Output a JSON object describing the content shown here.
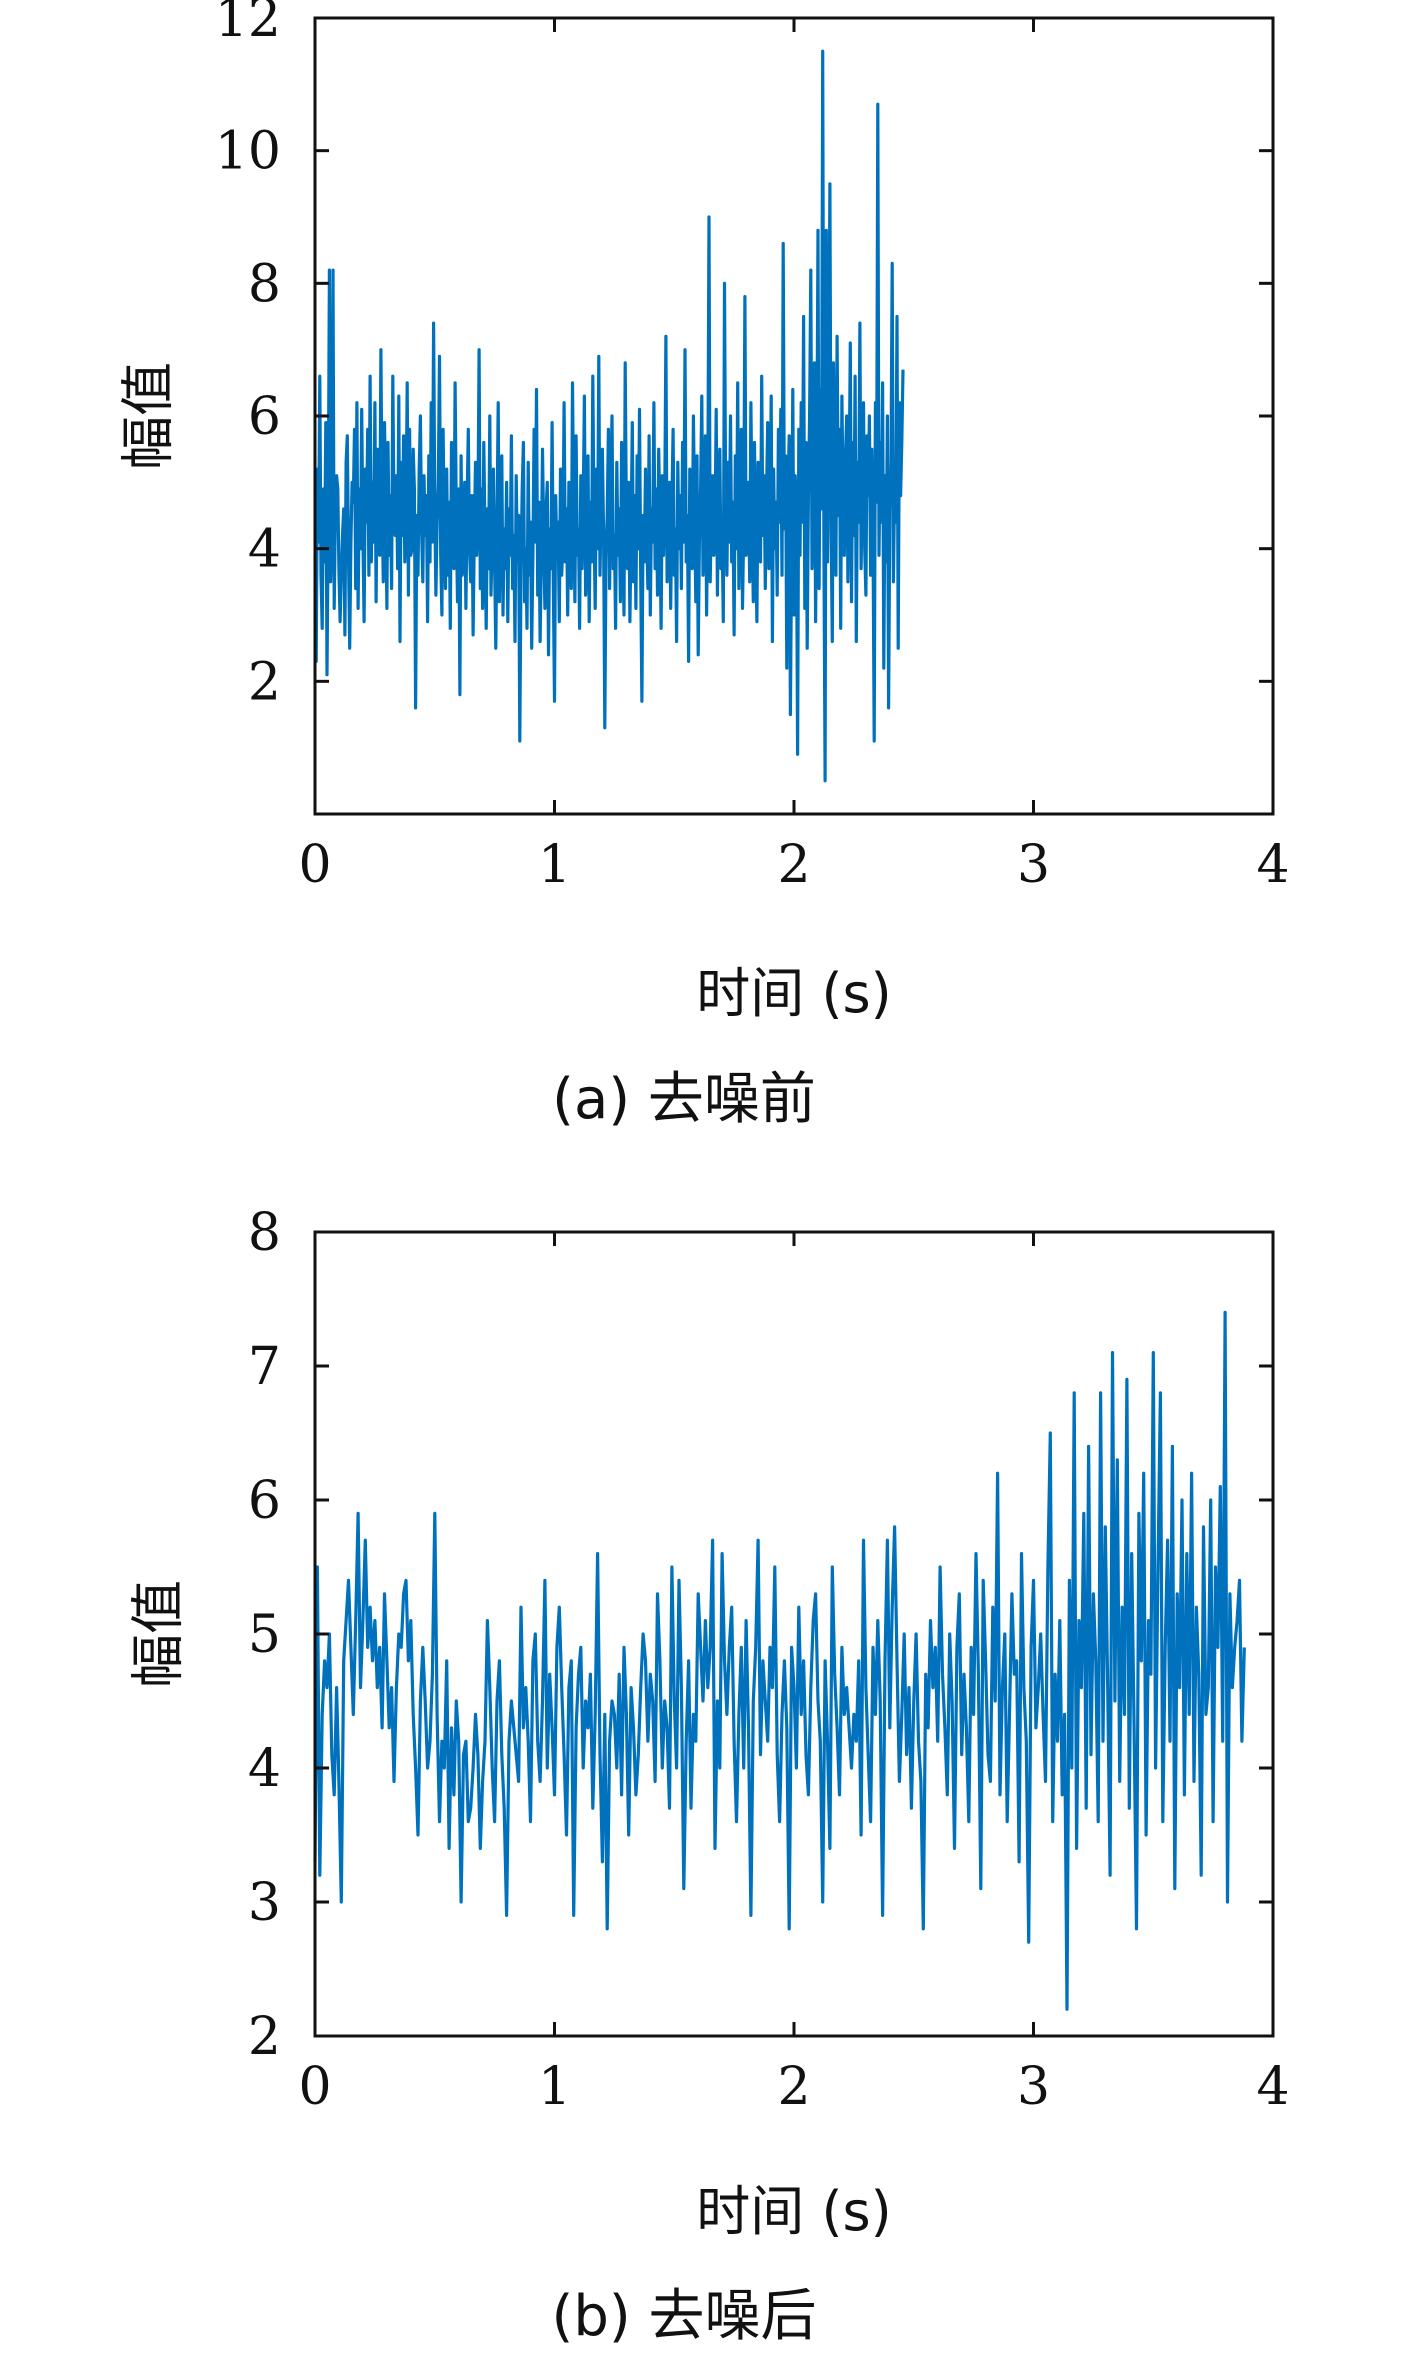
{
  "chart_data": [
    {
      "panel": "a",
      "type": "line",
      "caption": "(a) 去噪前",
      "xlabel": "时间 (s)",
      "ylabel": "幅值",
      "xlim": [
        0,
        4
      ],
      "ylim": [
        0,
        12
      ],
      "xticks": [
        "0",
        "1",
        "2",
        "3",
        "4"
      ],
      "yticks": [
        "2",
        "4",
        "6",
        "8",
        "10",
        "12"
      ],
      "x_tick_values": [
        0,
        1,
        2,
        3,
        4
      ],
      "y_tick_values": [
        2,
        4,
        6,
        8,
        10,
        12
      ],
      "grid": false,
      "series": [
        {
          "color": "#0072BD",
          "x_start": 0,
          "x_step": 0.005,
          "values": [
            3.9,
            2.3,
            5.2,
            4.1,
            6.6,
            3.6,
            2.8,
            4.9,
            3.8,
            5.9,
            2.1,
            4.4,
            8.2,
            3.5,
            4.2,
            8.2,
            3.1,
            4.6,
            5.1,
            4.9,
            3.7,
            2.9,
            3.6,
            4.2,
            4.6,
            2.7,
            5.3,
            5.7,
            3.9,
            2.5,
            4.1,
            5.0,
            4.7,
            5.8,
            3.4,
            6.2,
            3.1,
            4.9,
            4.0,
            6.1,
            4.2,
            2.9,
            5.2,
            4.4,
            5.8,
            3.6,
            6.6,
            3.8,
            5.0,
            4.1,
            6.2,
            3.2,
            5.5,
            4.3,
            3.9,
            7.0,
            4.6,
            3.5,
            5.9,
            4.8,
            3.1,
            5.6,
            3.9,
            4.8,
            3.4,
            6.6,
            4.5,
            4.2,
            5.1,
            3.7,
            6.3,
            2.6,
            5.3,
            4.2,
            5.7,
            3.8,
            4.4,
            6.5,
            3.3,
            5.8,
            3.9,
            4.0,
            5.5,
            4.9,
            1.6,
            4.5,
            3.6,
            5.2,
            6.0,
            4.3,
            3.5,
            5.1,
            4.2,
            4.8,
            2.9,
            5.4,
            3.8,
            6.2,
            4.1,
            7.4,
            4.6,
            3.3,
            4.4,
            5.0,
            6.9,
            3.9,
            3.0,
            5.8,
            4.3,
            3.4,
            5.2,
            3.6,
            4.7,
            2.8,
            5.6,
            4.1,
            3.7,
            6.5,
            4.5,
            3.2,
            4.9,
            1.8,
            5.4,
            3.6,
            4.3,
            5.0,
            3.1,
            4.7,
            5.8,
            4.0,
            3.5,
            4.8,
            2.7,
            4.2,
            5.3,
            3.9,
            4.5,
            7.0,
            3.4,
            4.9,
            3.1,
            5.6,
            4.2,
            2.8,
            4.6,
            3.7,
            6.0,
            3.3,
            4.1,
            5.2,
            3.8,
            2.5,
            4.4,
            6.2,
            3.2,
            4.8,
            5.4,
            3.0,
            4.3,
            3.7,
            5.0,
            2.9,
            4.6,
            3.9,
            5.7,
            3.4,
            4.2,
            2.6,
            5.1,
            3.8,
            4.5,
            1.1,
            3.7,
            4.9,
            5.6,
            3.2,
            4.0,
            2.8,
            5.3,
            3.6,
            4.4,
            2.5,
            3.9,
            5.8,
            4.1,
            6.4,
            3.3,
            4.7,
            2.6,
            3.8,
            5.5,
            4.2,
            3.1,
            4.6,
            5.0,
            2.4,
            4.3,
            3.7,
            5.9,
            3.5,
            1.7,
            4.8,
            3.9,
            4.4,
            2.9,
            5.2,
            3.6,
            4.1,
            6.2,
            3.8,
            4.6,
            3.0,
            5.0,
            4.2,
            3.4,
            6.5,
            4.5,
            3.2,
            5.7,
            3.9,
            4.3,
            2.8,
            5.1,
            3.7,
            4.6,
            6.3,
            3.3,
            4.0,
            5.4,
            2.9,
            4.7,
            3.8,
            6.6,
            4.4,
            3.1,
            5.2,
            4.0,
            6.9,
            3.6,
            4.8,
            5.5,
            4.2,
            1.3,
            3.9,
            4.5,
            5.8,
            3.4,
            4.9,
            6.0,
            3.7,
            4.2,
            2.8,
            5.3,
            3.9,
            4.6,
            3.2,
            5.6,
            4.1,
            3.0,
            6.8,
            4.4,
            3.7,
            5.0,
            2.9,
            4.3,
            5.9,
            3.5,
            4.8,
            3.1,
            5.4,
            4.0,
            6.1,
            3.6,
            1.7,
            4.5,
            3.8,
            5.2,
            4.2,
            3.4,
            5.7,
            3.0,
            4.6,
            4.1,
            6.2,
            3.7,
            4.9,
            3.3,
            5.5,
            4.4,
            2.8,
            5.1,
            3.9,
            4.6,
            7.2,
            3.5,
            4.2,
            5.0,
            3.1,
            4.7,
            5.8,
            3.6,
            4.3,
            2.6,
            5.3,
            4.0,
            4.8,
            3.4,
            5.6,
            4.1,
            7.0,
            3.8,
            4.5,
            2.3,
            5.2,
            4.3,
            3.7,
            6.0,
            4.6,
            3.2,
            5.4,
            2.4,
            4.1,
            4.9,
            6.3,
            3.6,
            4.4,
            5.7,
            3.0,
            4.8,
            9.0,
            3.5,
            4.6,
            5.1,
            3.9,
            4.3,
            6.1,
            3.3,
            4.8,
            5.5,
            3.7,
            4.2,
            2.9,
            8.0,
            4.5,
            3.6,
            5.3,
            4.1,
            6.0,
            3.8,
            4.7,
            2.7,
            5.4,
            4.0,
            6.5,
            3.4,
            4.9,
            5.8,
            3.1,
            4.3,
            7.8,
            3.9,
            4.6,
            5.0,
            3.5,
            6.2,
            4.4,
            3.2,
            5.6,
            4.0,
            2.9,
            5.3,
            4.7,
            3.8,
            6.6,
            4.2,
            5.1,
            3.4,
            4.8,
            5.9,
            3.7,
            4.5,
            6.3,
            2.6,
            5.2,
            4.0,
            4.7,
            3.3,
            5.8,
            4.4,
            6.1,
            3.6,
            8.6,
            4.3,
            5.4,
            2.2,
            4.9,
            5.7,
            1.5,
            4.0,
            6.4,
            3.0,
            5.1,
            4.6,
            0.9,
            5.8,
            3.9,
            6.2,
            4.4,
            7.5,
            3.1,
            5.6,
            2.5,
            4.8,
            6.0,
            8.2,
            3.7,
            4.5,
            6.8,
            2.9,
            5.2,
            8.8,
            3.4,
            6.4,
            4.6,
            11.5,
            4.1,
            0.5,
            8.8,
            3.8,
            6.1,
            9.5,
            4.3,
            2.6,
            6.8,
            5.1,
            3.6,
            7.2,
            4.5,
            5.8,
            2.8,
            6.3,
            4.7,
            3.9,
            5.4,
            6.0,
            3.5,
            4.9,
            7.1,
            3.2,
            5.6,
            4.2,
            6.6,
            2.6,
            5.3,
            4.4,
            7.4,
            3.7,
            5.0,
            6.2,
            4.0,
            3.3,
            5.7,
            4.8,
            6.0,
            3.6,
            5.5,
            4.3,
            1.1,
            6.2,
            4.7,
            10.7,
            3.9,
            5.6,
            4.4,
            6.5,
            2.2,
            5.1,
            3.8,
            6.0,
            1.6,
            4.6,
            5.3,
            8.3,
            3.5,
            5.0,
            4.4,
            7.5,
            2.5,
            6.2,
            4.8,
            5.6,
            6.7
          ]
        }
      ]
    },
    {
      "panel": "b",
      "type": "line",
      "caption": "(b) 去噪后",
      "xlabel": "时间 (s)",
      "ylabel": "幅值",
      "xlim": [
        0,
        4
      ],
      "ylim": [
        2,
        8
      ],
      "xticks": [
        "0",
        "1",
        "2",
        "3",
        "4"
      ],
      "yticks": [
        "2",
        "3",
        "4",
        "5",
        "6",
        "7",
        "8"
      ],
      "x_tick_values": [
        0,
        1,
        2,
        3,
        4
      ],
      "y_tick_values": [
        2,
        3,
        4,
        5,
        6,
        7,
        8
      ],
      "grid": false,
      "series": [
        {
          "color": "#0072BD",
          "x_start": 0,
          "x_step": 0.01,
          "values": [
            3.3,
            5.5,
            3.2,
            4.4,
            4.8,
            4.6,
            5.0,
            4.1,
            3.8,
            4.6,
            3.9,
            3.0,
            4.8,
            5.1,
            5.4,
            4.9,
            4.4,
            5.1,
            5.9,
            4.6,
            5.1,
            5.7,
            4.9,
            5.2,
            4.8,
            5.1,
            4.6,
            4.9,
            4.3,
            5.3,
            4.8,
            4.3,
            4.6,
            3.9,
            4.6,
            5.0,
            4.9,
            5.3,
            5.4,
            4.8,
            5.1,
            4.4,
            4.0,
            3.5,
            4.5,
            4.9,
            4.5,
            4.0,
            4.2,
            4.7,
            5.9,
            4.4,
            3.6,
            4.2,
            4.0,
            4.8,
            3.4,
            4.3,
            3.8,
            4.5,
            4.2,
            3.0,
            4.1,
            4.2,
            3.6,
            3.7,
            4.0,
            4.4,
            4.1,
            3.4,
            3.9,
            4.2,
            5.1,
            4.6,
            4.0,
            3.6,
            4.5,
            4.8,
            4.1,
            3.7,
            2.9,
            4.2,
            4.5,
            4.3,
            4.1,
            3.9,
            5.2,
            4.3,
            4.6,
            4.2,
            3.6,
            4.8,
            5.0,
            4.2,
            3.9,
            4.5,
            5.4,
            4.0,
            4.7,
            4.3,
            3.8,
            4.9,
            5.2,
            4.6,
            4.1,
            3.5,
            4.6,
            4.8,
            2.9,
            4.3,
            4.7,
            4.9,
            4.0,
            4.5,
            4.3,
            4.7,
            3.7,
            4.4,
            5.6,
            4.1,
            3.3,
            4.4,
            2.8,
            4.2,
            4.5,
            4.4,
            4.0,
            4.7,
            3.8,
            4.9,
            4.4,
            3.5,
            4.6,
            4.3,
            3.8,
            4.1,
            4.6,
            5.0,
            4.8,
            4.2,
            4.7,
            4.5,
            3.9,
            5.3,
            4.8,
            4.0,
            4.5,
            4.3,
            3.7,
            5.5,
            4.5,
            4.0,
            5.4,
            4.6,
            3.1,
            4.2,
            4.8,
            3.7,
            4.4,
            4.2,
            5.3,
            4.9,
            4.5,
            5.1,
            4.6,
            4.9,
            5.7,
            3.4,
            4.5,
            4.0,
            5.6,
            4.8,
            4.4,
            4.9,
            5.2,
            4.2,
            3.6,
            4.4,
            4.9,
            4.0,
            5.1,
            4.3,
            2.9,
            4.5,
            4.9,
            5.7,
            4.1,
            4.8,
            4.5,
            4.2,
            4.9,
            4.6,
            5.5,
            4.1,
            3.6,
            4.4,
            4.8,
            4.3,
            2.8,
            4.9,
            4.6,
            4.0,
            5.2,
            4.4,
            4.8,
            4.1,
            3.8,
            4.6,
            5.1,
            5.3,
            4.5,
            4.2,
            3.0,
            4.8,
            4.2,
            3.4,
            5.5,
            4.7,
            4.3,
            3.8,
            4.9,
            4.4,
            4.6,
            4.3,
            4.0,
            4.4,
            4.2,
            4.8,
            3.5,
            5.7,
            4.6,
            4.1,
            3.6,
            4.9,
            4.4,
            5.1,
            4.5,
            2.9,
            4.8,
            5.7,
            4.3,
            5.2,
            5.8,
            4.8,
            3.9,
            4.4,
            5.0,
            4.1,
            4.6,
            3.7,
            4.5,
            5.0,
            4.2,
            3.9,
            2.8,
            4.7,
            4.3,
            5.1,
            4.6,
            4.9,
            4.2,
            5.5,
            4.7,
            4.3,
            3.8,
            5.0,
            4.5,
            3.4,
            4.9,
            5.3,
            4.1,
            4.7,
            4.3,
            3.6,
            4.9,
            4.4,
            5.6,
            4.7,
            3.1,
            5.4,
            4.8,
            4.1,
            3.9,
            5.2,
            4.5,
            6.2,
            3.8,
            4.6,
            5.0,
            3.6,
            4.4,
            5.3,
            4.7,
            4.8,
            3.3,
            5.6,
            4.6,
            4.2,
            2.7,
            4.9,
            5.4,
            4.3,
            4.6,
            5.0,
            4.4,
            3.9,
            5.5,
            6.5,
            3.6,
            4.7,
            4.2,
            5.1,
            3.8,
            4.4,
            2.2,
            5.4,
            4.0,
            6.8,
            3.4,
            5.1,
            4.6,
            5.9,
            3.7,
            6.4,
            4.1,
            5.3,
            4.8,
            3.6,
            6.8,
            4.2,
            5.8,
            4.6,
            3.2,
            7.1,
            4.5,
            6.3,
            3.9,
            5.2,
            4.4,
            6.9,
            3.7,
            5.6,
            4.3,
            2.8,
            5.9,
            4.8,
            6.2,
            3.5,
            5.1,
            4.7,
            7.1,
            4.0,
            5.5,
            6.8,
            3.6,
            4.9,
            5.7,
            4.2,
            6.4,
            3.1,
            5.3,
            4.6,
            6.0,
            3.8,
            5.6,
            4.4,
            6.2,
            3.9,
            5.2,
            4.7,
            3.2,
            5.8,
            4.4,
            4.6,
            6.0,
            3.6,
            5.5,
            4.9,
            6.1,
            4.2,
            7.4,
            3.0,
            5.3,
            4.6,
            4.9,
            5.1,
            5.4,
            4.2,
            4.9
          ]
        }
      ]
    }
  ]
}
